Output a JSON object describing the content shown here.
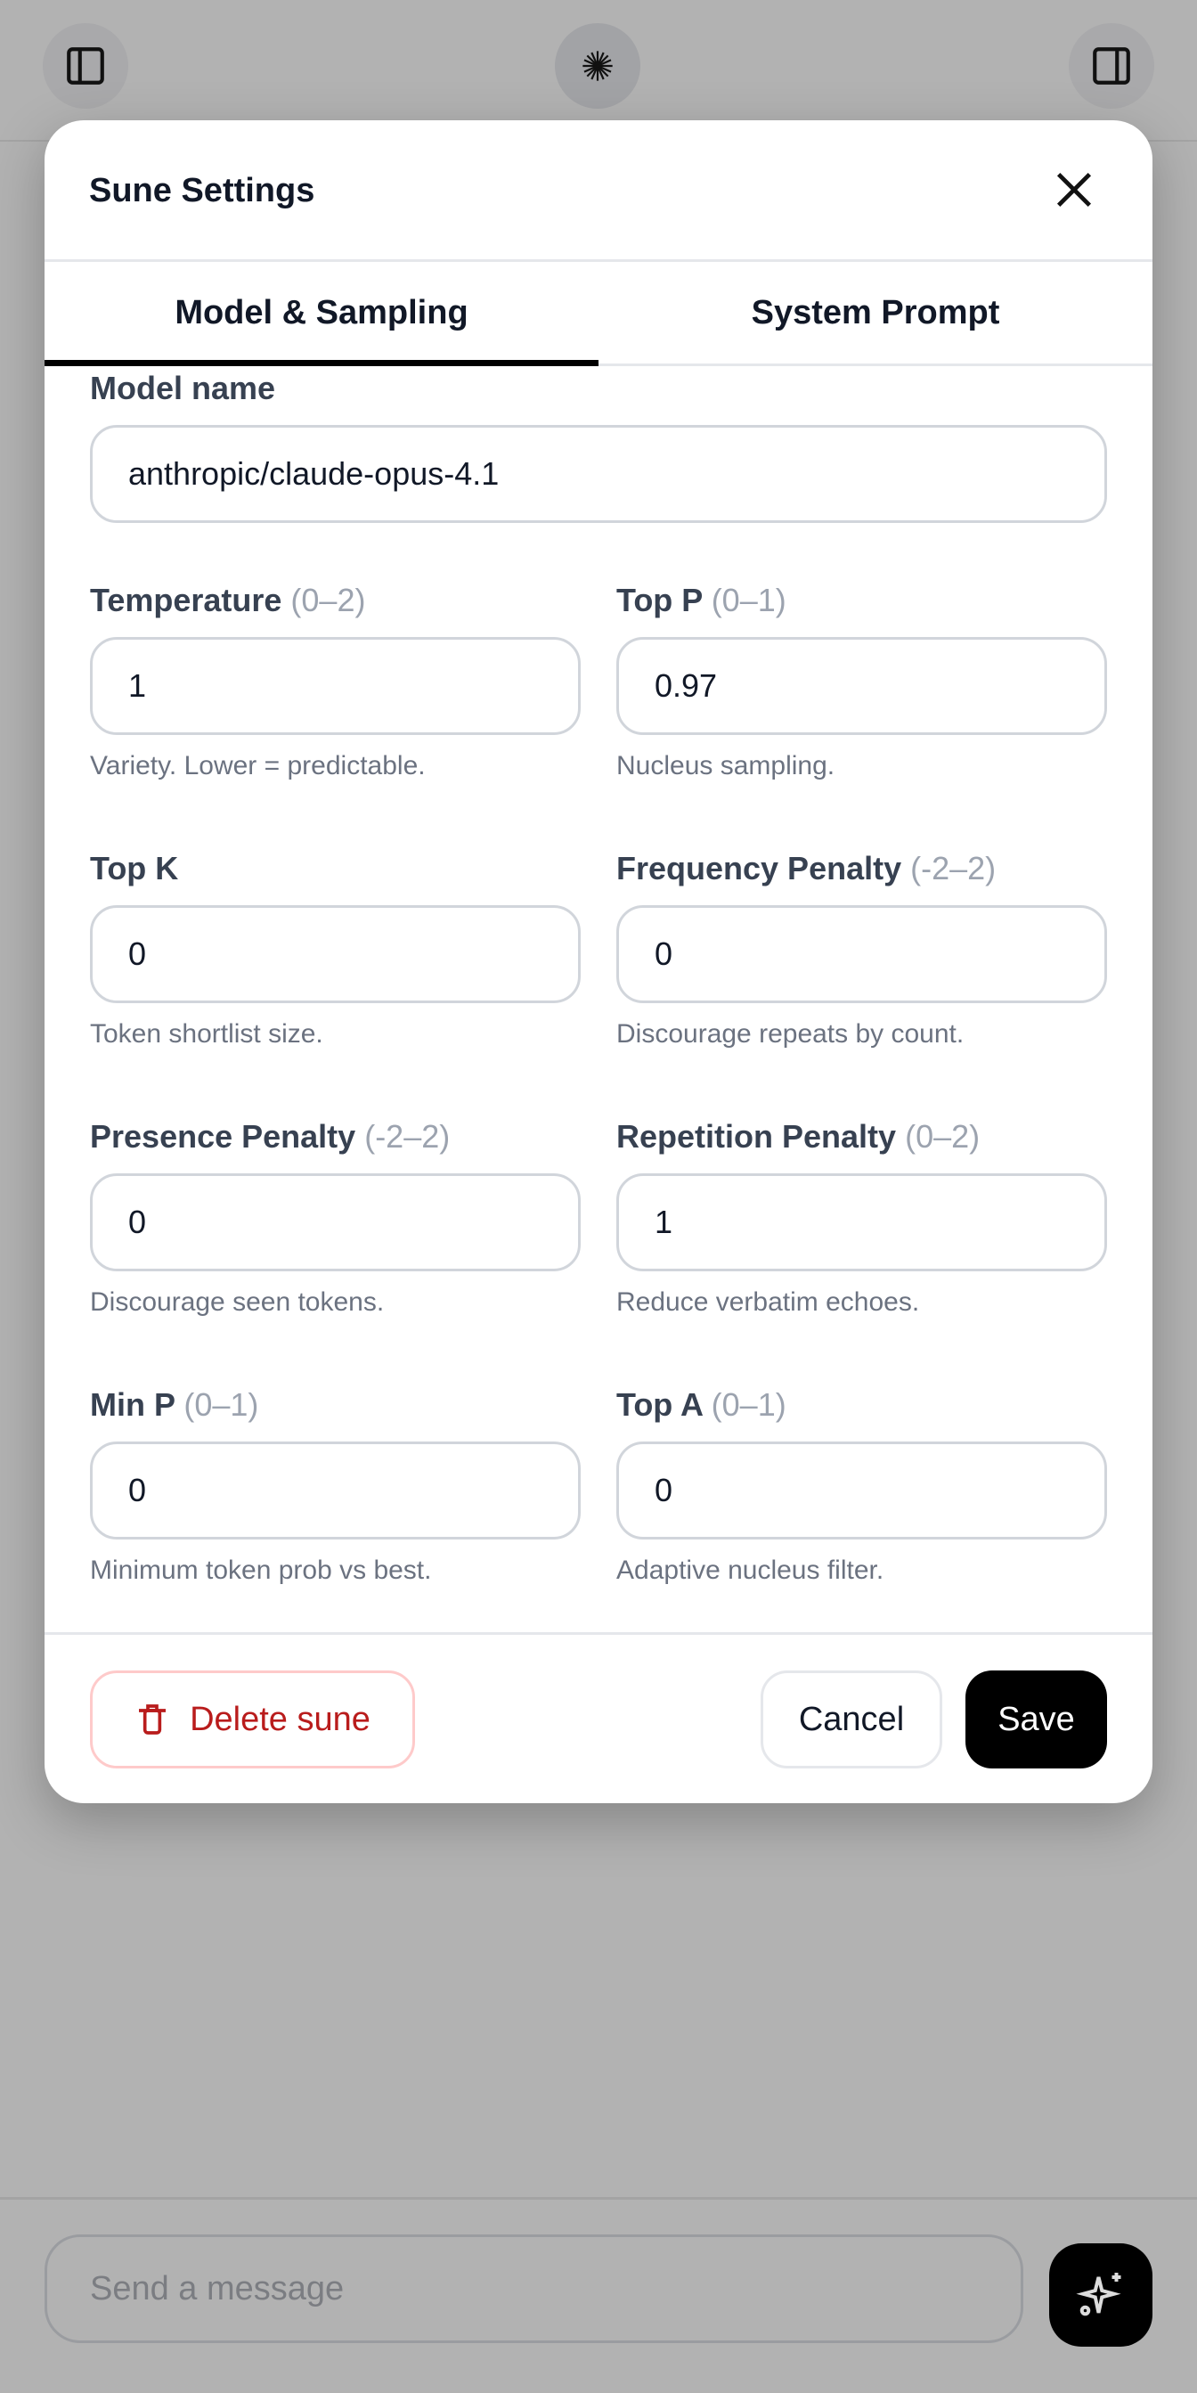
{
  "dialog": {
    "title": "Sune Settings",
    "tabs": [
      {
        "label": "Model & Sampling",
        "active": true
      },
      {
        "label": "System Prompt",
        "active": false
      }
    ],
    "model": {
      "label": "Model name",
      "value": "anthropic/claude-opus-4.1"
    },
    "fields": [
      {
        "label": "Temperature",
        "range": "(0–2)",
        "value": "1",
        "hint": "Variety. Lower = predictable."
      },
      {
        "label": "Top P",
        "range": "(0–1)",
        "value": "0.97",
        "hint": "Nucleus sampling."
      },
      {
        "label": "Top K",
        "range": "",
        "value": "0",
        "hint": "Token shortlist size."
      },
      {
        "label": "Frequency Penalty",
        "range": "(-2–2)",
        "value": "0",
        "hint": "Discourage repeats by count."
      },
      {
        "label": "Presence Penalty",
        "range": "(-2–2)",
        "value": "0",
        "hint": "Discourage seen tokens."
      },
      {
        "label": "Repetition Penalty",
        "range": "(0–2)",
        "value": "1",
        "hint": "Reduce verbatim echoes."
      },
      {
        "label": "Min P",
        "range": "(0–1)",
        "value": "0",
        "hint": "Minimum token prob vs best."
      },
      {
        "label": "Top A",
        "range": "(0–1)",
        "value": "0",
        "hint": "Adaptive nucleus filter."
      }
    ],
    "footer": {
      "delete_label": "Delete sune",
      "cancel_label": "Cancel",
      "save_label": "Save"
    }
  },
  "composer": {
    "placeholder": "Send a message"
  },
  "colors": {
    "danger": "#b91c1c",
    "primary": "#000000",
    "overlay": "#b2b2b2"
  }
}
